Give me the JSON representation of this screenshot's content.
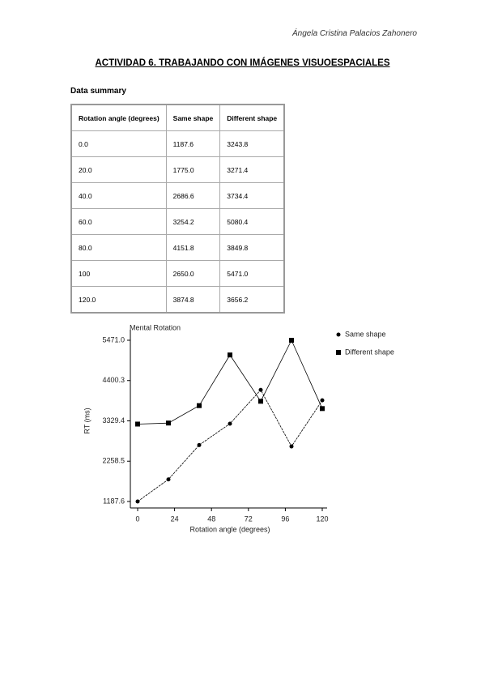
{
  "header": {
    "author": "Ángela Cristina Palacios Zahonero",
    "title": "ACTIVIDAD 6. TRABAJANDO CON IMÁGENES VISUOESPACIALES"
  },
  "section": "Data summary",
  "table": {
    "columns": [
      "Rotation angle (degrees)",
      "Same shape",
      "Different shape"
    ],
    "rows": [
      [
        "0.0",
        "1187.6",
        "3243.8"
      ],
      [
        "20.0",
        "1775.0",
        "3271.4"
      ],
      [
        "40.0",
        "2686.6",
        "3734.4"
      ],
      [
        "60.0",
        "3254.2",
        "5080.4"
      ],
      [
        "80.0",
        "4151.8",
        "3849.8"
      ],
      [
        "100",
        "2650.0",
        "5471.0"
      ],
      [
        "120.0",
        "3874.8",
        "3656.2"
      ]
    ]
  },
  "chart_data": {
    "type": "line",
    "title": "Mental Rotation",
    "x_label": "Rotation angle (degrees)",
    "y_label": "RT (ms)",
    "x": [
      0,
      20,
      40,
      60,
      80,
      100,
      120
    ],
    "series": [
      {
        "name": "Same shape",
        "color": "#000000",
        "marker": "circle",
        "values": [
          1187.6,
          1775.0,
          2686.6,
          3254.2,
          4151.8,
          2650.0,
          3874.8
        ]
      },
      {
        "name": "Different shape",
        "color": "#000000",
        "marker": "square",
        "values": [
          3243.8,
          3271.4,
          3734.4,
          5080.4,
          3849.8,
          5471.0,
          3656.2
        ]
      }
    ],
    "xlim": [
      0,
      120
    ],
    "xticks": [
      0,
      24,
      48,
      72,
      96,
      120
    ],
    "ylim": [
      1187.6,
      5471.0
    ],
    "yticks": [
      1187.6,
      2258.5,
      3329.4,
      4400.3,
      {
        "value": 5471.0,
        "label": "5471.0"
      }
    ],
    "legend": "right"
  }
}
